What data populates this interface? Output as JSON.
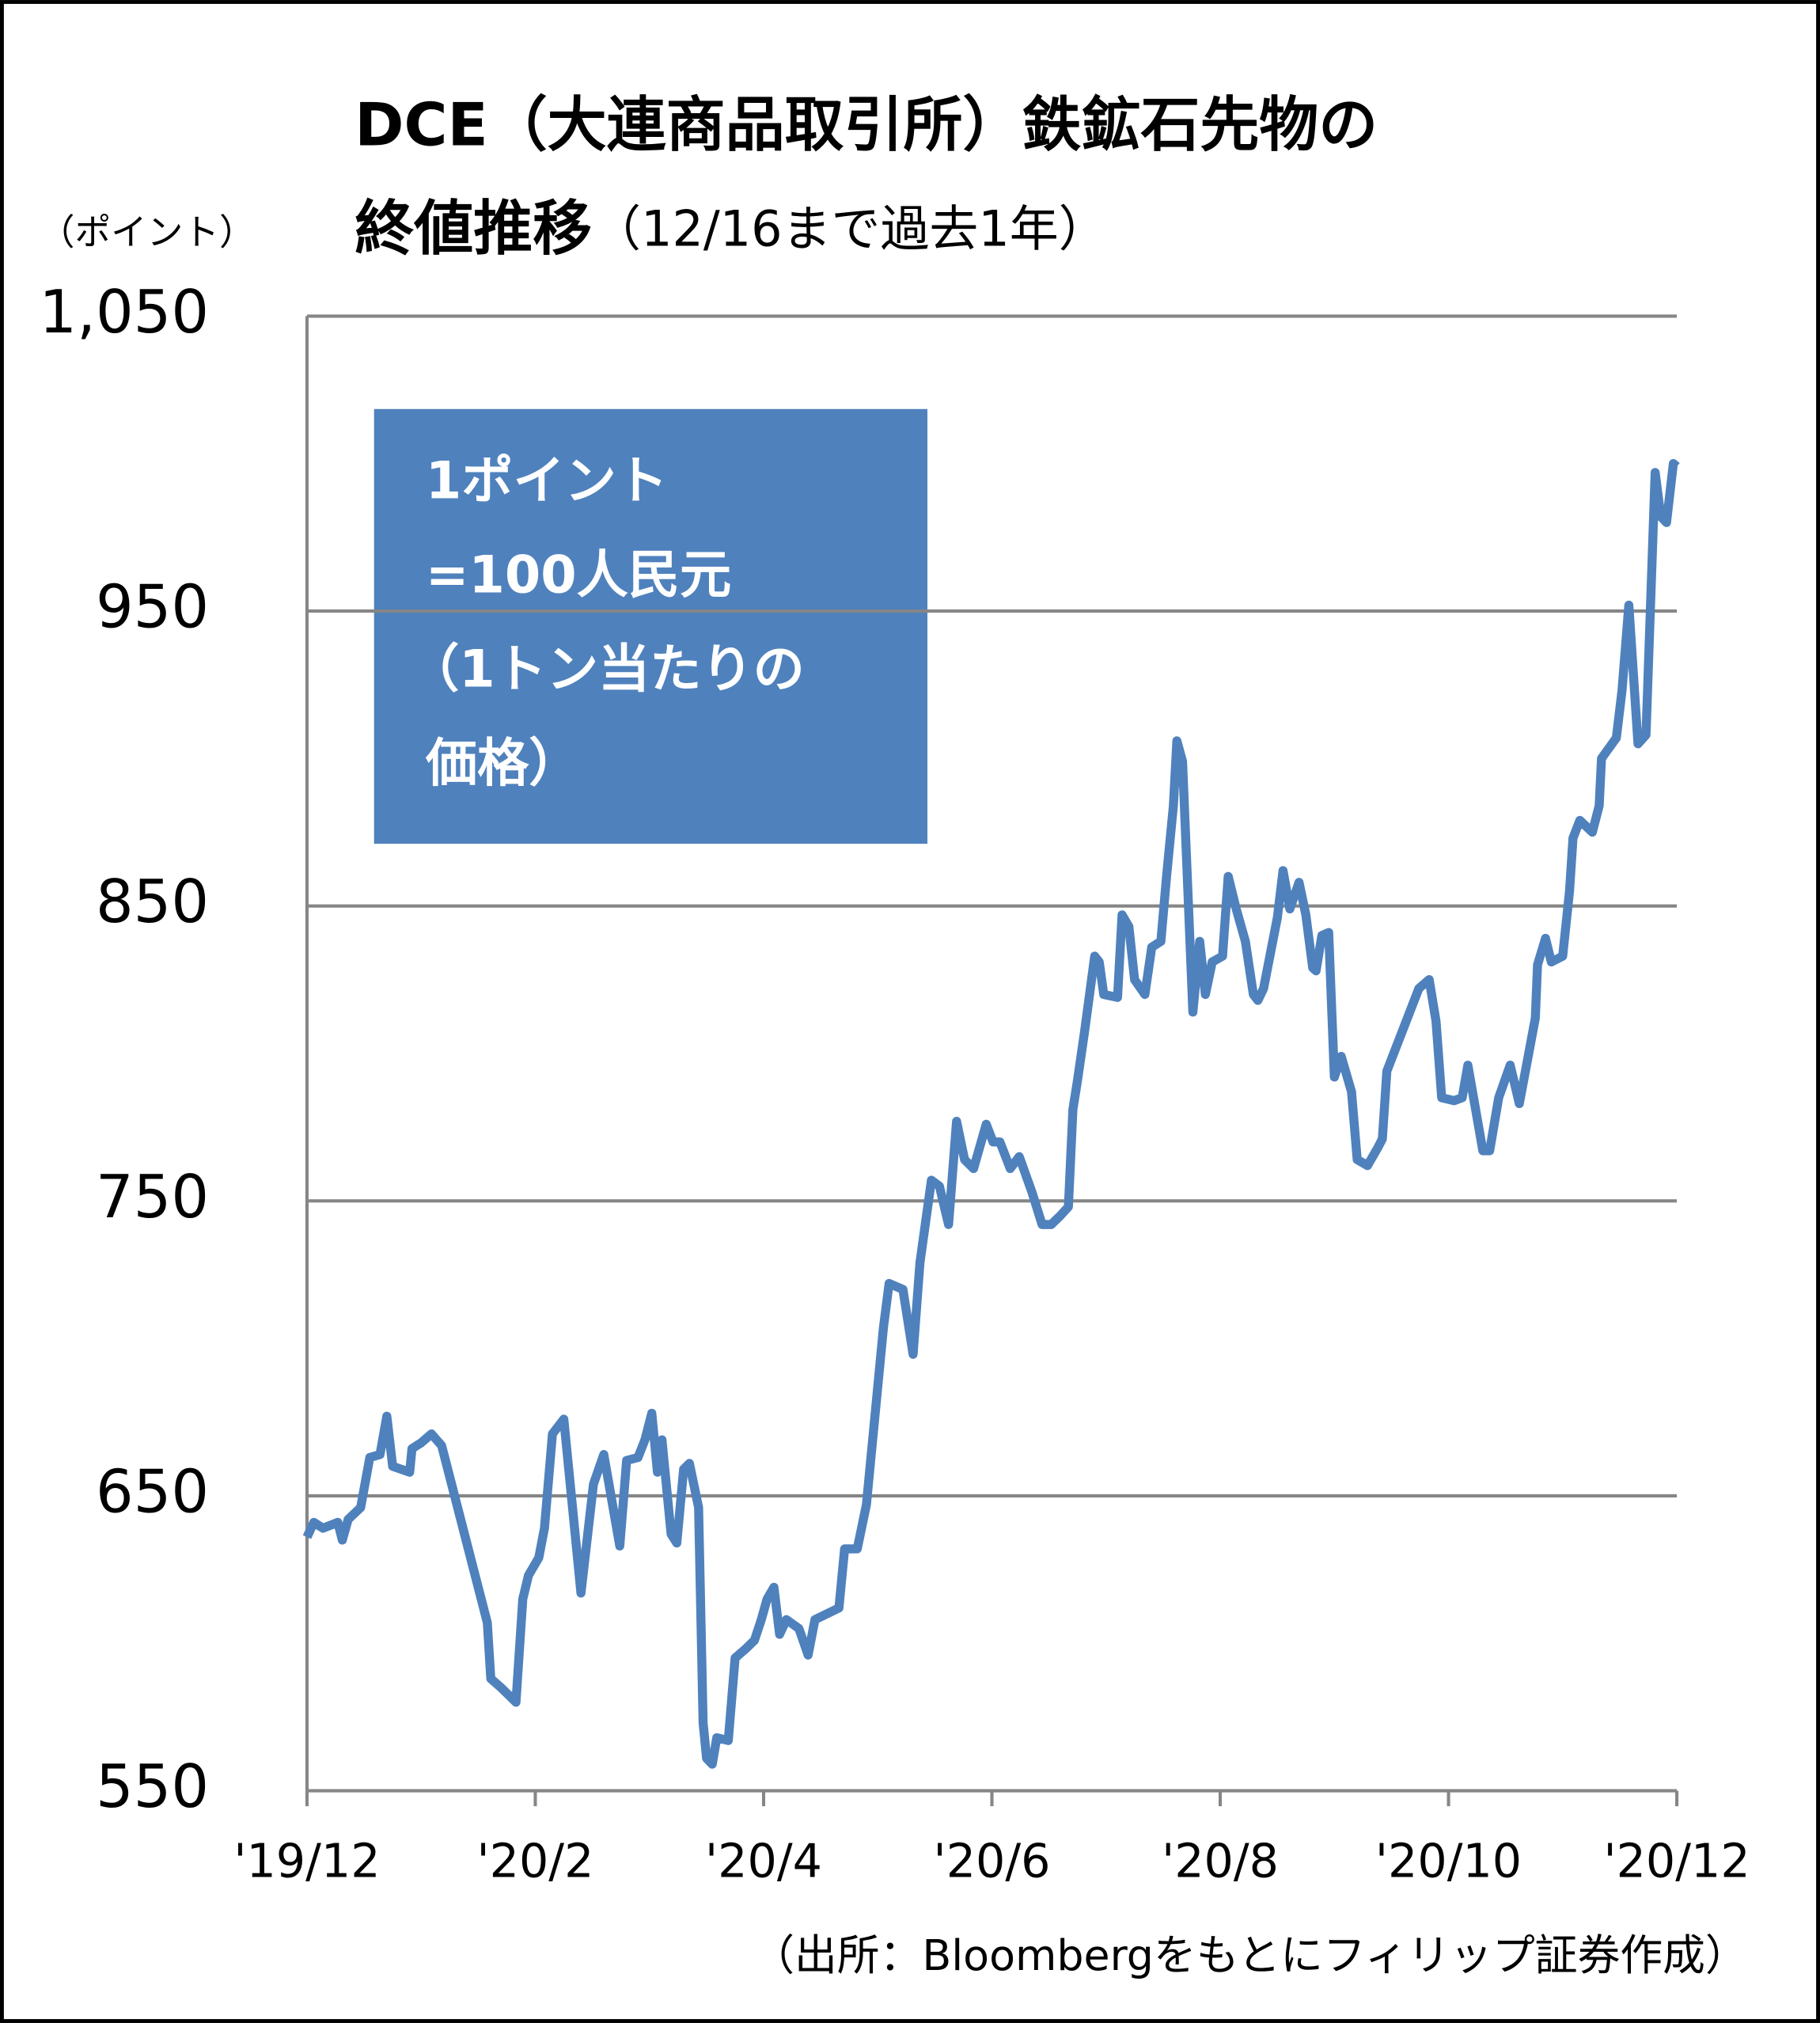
{
  "chart_data": {
    "type": "line",
    "title": [
      "DCE（大連商品取引所）鉄鉱石先物の",
      "終値推移",
      "（12/16まで過去1年）"
    ],
    "y_unit_label": "（ポイント）",
    "annotation": [
      "1ポイント",
      "=100人民元",
      "（1トン当たりの",
      "価格）"
    ],
    "source": "（出所：Bloombergをもとにフィリップ証券作成）",
    "xlim": [
      0,
      12
    ],
    "xticks": [
      {
        "value": 0,
        "label": "'19/12"
      },
      {
        "value": 2,
        "label": "'20/2"
      },
      {
        "value": 4,
        "label": "'20/4"
      },
      {
        "value": 6,
        "label": "'20/6"
      },
      {
        "value": 8,
        "label": "'20/8"
      },
      {
        "value": 10,
        "label": "'20/10"
      },
      {
        "value": 12,
        "label": "'20/12"
      }
    ],
    "ylim": [
      550,
      1050
    ],
    "yticks": [
      550,
      650,
      750,
      850,
      950,
      {
        "value": 1050,
        "label": "1,050"
      }
    ],
    "grid": true,
    "series": [
      {
        "color": "#4f81bd",
        "x": [
          0,
          0.06,
          0.14,
          0.27,
          0.31,
          0.36,
          0.47,
          0.55,
          0.64,
          0.7,
          0.75,
          0.9,
          0.92,
          1.0,
          1.09,
          1.18,
          1.58,
          1.61,
          1.7,
          1.83,
          1.89,
          1.94,
          2.03,
          2.08,
          2.15,
          2.25,
          2.4,
          2.51,
          2.6,
          2.74,
          2.8,
          2.9,
          2.96,
          3.02,
          3.07,
          3.11,
          3.19,
          3.24,
          3.3,
          3.35,
          3.43,
          3.47,
          3.5,
          3.55,
          3.59,
          3.69,
          3.75,
          3.84,
          3.92,
          3.98,
          4.03,
          4.09,
          4.14,
          4.2,
          4.31,
          4.39,
          4.45,
          4.66,
          4.71,
          4.82,
          4.9,
          5.05,
          5.1,
          5.22,
          5.31,
          5.37,
          5.47,
          5.54,
          5.62,
          5.69,
          5.76,
          5.84,
          5.95,
          6.01,
          6.07,
          6.16,
          6.24,
          6.35,
          6.44,
          6.52,
          6.6,
          6.67,
          6.71,
          6.75,
          6.81,
          6.9,
          6.94,
          6.98,
          7.1,
          7.14,
          7.2,
          7.25,
          7.34,
          7.4,
          7.48,
          7.53,
          7.59,
          7.62,
          7.67,
          7.76,
          7.82,
          7.87,
          7.93,
          8.02,
          8.07,
          8.14,
          8.22,
          8.29,
          8.33,
          8.38,
          8.5,
          8.55,
          8.61,
          8.69,
          8.75,
          8.81,
          8.84,
          8.89,
          8.95,
          9.0,
          9.06,
          9.15,
          9.2,
          9.29,
          9.38,
          9.42,
          9.46,
          9.74,
          9.83,
          9.89,
          9.94,
          10.05,
          10.12,
          10.17,
          10.3,
          10.36,
          10.44,
          10.54,
          10.62,
          10.76,
          10.78,
          10.85,
          10.9,
          11.0,
          11.06,
          11.09,
          11.15,
          11.26,
          11.32,
          11.34,
          11.47,
          11.52,
          11.58,
          11.66,
          11.73,
          11.81,
          11.86,
          11.91,
          11.97,
          12.0
        ],
        "values": [
          636,
          641,
          639,
          641,
          635,
          642,
          646,
          663,
          664,
          677,
          660,
          658,
          666,
          668,
          671,
          667,
          607,
          588,
          585,
          580,
          615,
          623,
          629,
          639,
          671,
          676,
          617,
          654,
          664,
          633,
          662,
          663,
          669,
          678,
          658,
          669,
          637,
          634,
          659,
          661,
          646,
          573,
          561,
          559,
          568,
          567,
          595,
          598,
          601,
          608,
          615,
          619,
          603,
          608,
          605,
          596,
          608,
          612,
          632,
          632,
          647,
          707,
          722,
          720,
          698,
          729,
          757,
          755,
          742,
          777,
          764,
          761,
          776,
          770,
          770,
          761,
          765,
          753,
          742,
          742,
          745,
          748,
          781,
          791,
          807,
          833,
          831,
          820,
          819,
          847,
          843,
          825,
          820,
          836,
          838,
          860,
          884,
          906,
          899,
          814,
          838,
          820,
          831,
          833,
          860,
          849,
          838,
          820,
          818,
          822,
          846,
          862,
          849,
          858,
          847,
          829,
          828,
          840,
          841,
          792,
          799,
          787,
          764,
          762,
          768,
          771,
          794,
          822,
          825,
          811,
          785,
          784,
          785,
          796,
          767,
          767,
          785,
          796,
          783,
          812,
          830,
          839,
          831,
          833,
          855,
          873,
          879,
          875,
          884,
          900,
          907,
          923,
          952,
          905,
          908,
          997,
          982,
          980,
          1000,
          999
        ]
      }
    ]
  }
}
